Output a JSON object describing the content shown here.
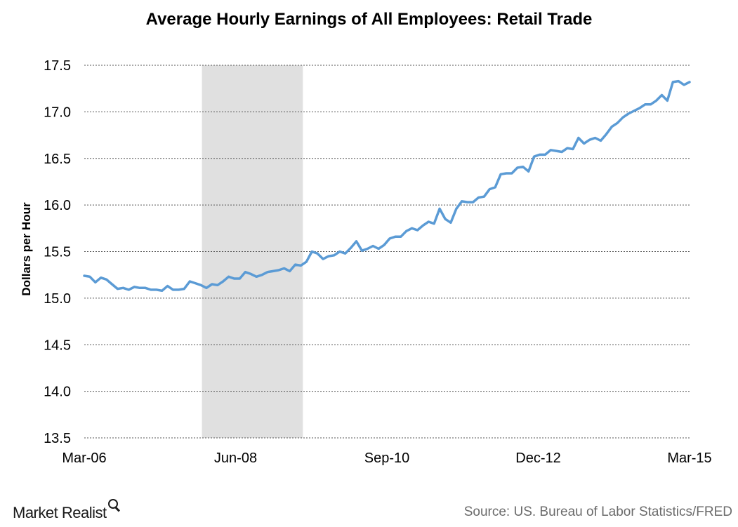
{
  "chart_data": {
    "type": "line",
    "title": "Average Hourly Earnings of All Employees: Retail Trade",
    "ylabel": "Dollars per Hour",
    "xlabel": "",
    "ylim": [
      13.5,
      17.5
    ],
    "yticks": [
      "17.5",
      "17.0",
      "16.5",
      "16.0",
      "15.5",
      "15.0",
      "14.5",
      "14.0",
      "13.5"
    ],
    "xtick_labels": [
      "Mar-06",
      "Jun-08",
      "Sep-10",
      "Dec-12",
      "Mar-15"
    ],
    "x_start": "Mar-06",
    "x_end": "Mar-15",
    "grid": "horizontal dashed",
    "recession_shading": {
      "from": "Dec-07",
      "to": "Jun-09",
      "color": "#e0e0e0"
    },
    "series": [
      {
        "color": "#5b9bd5",
        "values": [
          15.24,
          15.23,
          15.17,
          15.22,
          15.2,
          15.15,
          15.1,
          15.11,
          15.09,
          15.12,
          15.11,
          15.11,
          15.09,
          15.09,
          15.08,
          15.13,
          15.09,
          15.09,
          15.1,
          15.18,
          15.16,
          15.14,
          15.11,
          15.15,
          15.14,
          15.18,
          15.23,
          15.21,
          15.21,
          15.28,
          15.26,
          15.23,
          15.25,
          15.28,
          15.29,
          15.3,
          15.32,
          15.29,
          15.36,
          15.35,
          15.39,
          15.5,
          15.48,
          15.42,
          15.45,
          15.46,
          15.5,
          15.48,
          15.54,
          15.61,
          15.51,
          15.53,
          15.56,
          15.53,
          15.57,
          15.64,
          15.66,
          15.66,
          15.72,
          15.75,
          15.73,
          15.78,
          15.82,
          15.8,
          15.96,
          15.85,
          15.81,
          15.96,
          16.04,
          16.03,
          16.03,
          16.08,
          16.09,
          16.17,
          16.19,
          16.33,
          16.34,
          16.34,
          16.4,
          16.41,
          16.36,
          16.52,
          16.54,
          16.54,
          16.59,
          16.58,
          16.57,
          16.61,
          16.6,
          16.72,
          16.66,
          16.7,
          16.72,
          16.69,
          16.76,
          16.84,
          16.88,
          16.94,
          16.98,
          17.01,
          17.04,
          17.08,
          17.08,
          17.12,
          17.18,
          17.12,
          17.32,
          17.33,
          17.29,
          17.32
        ]
      }
    ]
  },
  "source_text": "Source: US. Bureau of Labor Statistics/FRED",
  "logo_text": "Market Realist"
}
